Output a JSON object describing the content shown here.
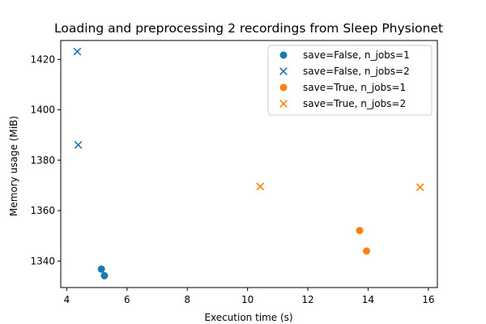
{
  "chart_data": {
    "type": "scatter",
    "title": "Loading and preprocessing 2 recordings from Sleep Physionet",
    "xlabel": "Execution time (s)",
    "ylabel": "Memory usage (MiB)",
    "xlim": [
      3.8,
      16.3
    ],
    "ylim": [
      1329.5,
      1427.5
    ],
    "xticks": [
      4,
      6,
      8,
      10,
      12,
      14,
      16
    ],
    "yticks": [
      1340,
      1360,
      1380,
      1400,
      1420
    ],
    "grid": false,
    "legend_position": "top-right",
    "series": [
      {
        "name": "save=False, n_jobs=1",
        "marker": "circle",
        "color": "#1f77b4",
        "points": [
          {
            "x": 5.15,
            "y": 1336.8
          },
          {
            "x": 5.25,
            "y": 1334.2
          }
        ]
      },
      {
        "name": "save=False, n_jobs=2",
        "marker": "x",
        "color": "#1f77b4",
        "points": [
          {
            "x": 4.35,
            "y": 1423.1
          },
          {
            "x": 4.38,
            "y": 1386.1
          }
        ]
      },
      {
        "name": "save=True, n_jobs=1",
        "marker": "circle",
        "color": "#ff7f0e",
        "points": [
          {
            "x": 13.72,
            "y": 1352.1
          },
          {
            "x": 13.95,
            "y": 1344.0
          }
        ]
      },
      {
        "name": "save=True, n_jobs=2",
        "marker": "x",
        "color": "#ff7f0e",
        "points": [
          {
            "x": 10.42,
            "y": 1369.6
          },
          {
            "x": 15.73,
            "y": 1369.3
          }
        ]
      }
    ]
  }
}
